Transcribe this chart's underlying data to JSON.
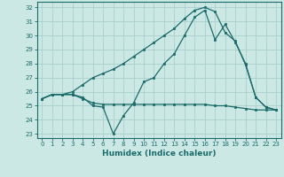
{
  "xlabel": "Humidex (Indice chaleur)",
  "background_color": "#cce8e4",
  "grid_color": "#aacfcb",
  "line_color": "#1a6b6b",
  "xlim": [
    -0.5,
    23.5
  ],
  "ylim": [
    22.7,
    32.4
  ],
  "xticks": [
    0,
    1,
    2,
    3,
    4,
    5,
    6,
    7,
    8,
    9,
    10,
    11,
    12,
    13,
    14,
    15,
    16,
    17,
    18,
    19,
    20,
    21,
    22,
    23
  ],
  "yticks": [
    23,
    24,
    25,
    26,
    27,
    28,
    29,
    30,
    31,
    32
  ],
  "series": [
    [
      25.5,
      25.8,
      25.8,
      25.8,
      25.6,
      25.0,
      24.9,
      23.0,
      24.3,
      25.2,
      26.7,
      27.0,
      28.0,
      28.7,
      30.0,
      31.3,
      31.8,
      29.7,
      30.8,
      29.5,
      28.0,
      25.6,
      24.9,
      24.7
    ],
    [
      25.5,
      25.8,
      25.8,
      25.8,
      25.5,
      25.2,
      25.1,
      25.1,
      25.1,
      25.1,
      25.1,
      25.1,
      25.1,
      25.1,
      25.1,
      25.1,
      25.1,
      25.0,
      25.0,
      24.9,
      24.8,
      24.7,
      24.7,
      24.7
    ],
    [
      25.5,
      25.8,
      25.8,
      26.0,
      26.5,
      27.0,
      27.3,
      27.6,
      28.0,
      28.5,
      29.0,
      29.5,
      30.0,
      30.5,
      31.2,
      31.8,
      32.0,
      31.7,
      30.2,
      29.6,
      27.9,
      25.6,
      24.9,
      24.7
    ]
  ]
}
